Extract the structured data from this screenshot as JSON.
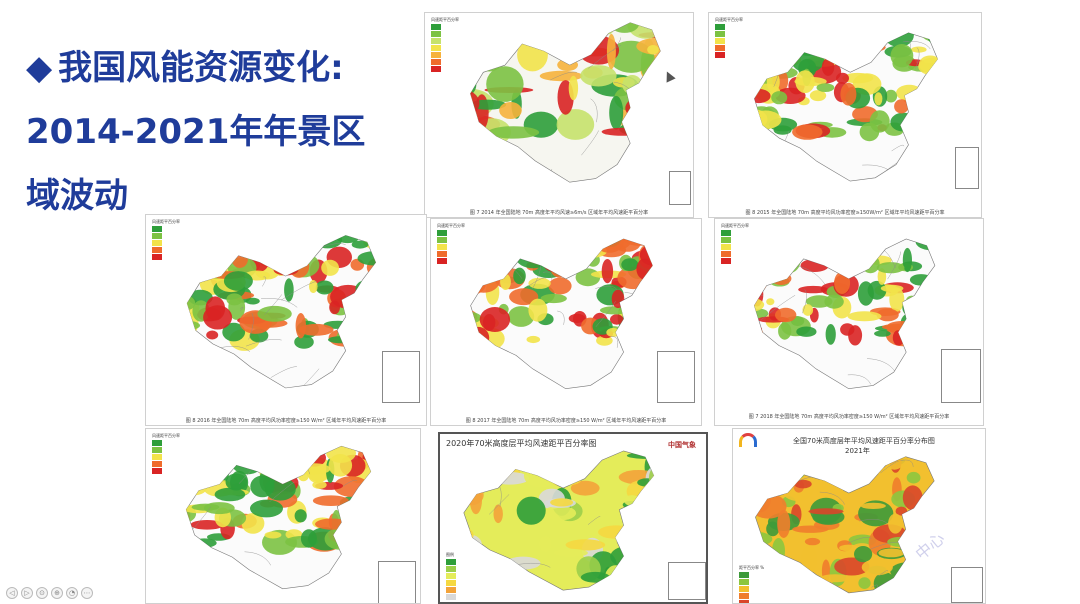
{
  "slide": {
    "title_lines": [
      "我国风能资源变化:",
      "2014-2021年年景区",
      "域波动"
    ],
    "bullet": "◆",
    "title_color": "#1f3c9a"
  },
  "maps": [
    {
      "id": "map-2014",
      "caption": "图 7   2014 年全国陆地 70m 高度年平均风速≥6m/s 区域年平均风速距平百分率",
      "legend_title": "风速距平百分率",
      "palette": [
        "#2e9e3a",
        "#7cc242",
        "#c6e26b",
        "#f2e34a",
        "#f6b23c",
        "#ef6b2c",
        "#d92424"
      ]
    },
    {
      "id": "map-2015",
      "caption": "图 8   2015 年全国陆地 70m 高度平均风功率密度≥150W/m² 区域年平均风速距平百分率",
      "legend_title": "风速距平百分率",
      "palette": [
        "#2e9e3a",
        "#7cc242",
        "#f2e34a",
        "#ef6b2c",
        "#d92424"
      ]
    },
    {
      "id": "map-2016",
      "caption": "图 8   2016 年全国陆地 70m 高度平均风功率密度≥150 W/m² 区域年平均风速距平百分率",
      "legend_title": "风速距平百分率",
      "palette": [
        "#2e9e3a",
        "#7cc242",
        "#f2e34a",
        "#ef6b2c",
        "#d92424"
      ]
    },
    {
      "id": "map-2017",
      "caption": "图 8   2017 年全国陆地 70m 高度平均风功率密度≥150 W/m² 区域年平均风速距平百分率",
      "legend_title": "风速距平百分率",
      "palette": [
        "#2e9e3a",
        "#7cc242",
        "#f2e34a",
        "#ef6b2c",
        "#d92424"
      ]
    },
    {
      "id": "map-2018",
      "caption": "图 7   2018 年全国陆地 70m 高度平均风功率密度≥150 W/m² 区域年平均风速距平百分率",
      "legend_title": "风速距平百分率",
      "palette": [
        "#2e9e3a",
        "#7cc242",
        "#f2e34a",
        "#ef6b2c",
        "#d92424"
      ]
    },
    {
      "id": "map-2019",
      "caption": "",
      "legend_title": "风速距平百分率",
      "palette": [
        "#2e9e3a",
        "#7cc242",
        "#f2e34a",
        "#ef6b2c",
        "#d92424"
      ]
    },
    {
      "id": "map-2020",
      "title": "2020年70米高度层平均风速距平百分率图",
      "logo": "中国气象",
      "legend_title": "图例",
      "palette": [
        "#2e9e3a",
        "#9ccf4a",
        "#e4ec5a",
        "#f5d840",
        "#f3a33a",
        "#d9d9d9"
      ]
    },
    {
      "id": "map-2021",
      "title": "全国70米高度层年平均风速距平百分率分布图",
      "subtitle": "2021年",
      "legend_title": "距平百分率 %",
      "watermark": "中心",
      "palette": [
        "#3d9a3a",
        "#8cc63f",
        "#f2c02f",
        "#ef7d2c",
        "#d9462a"
      ]
    }
  ],
  "nav_buttons": [
    "◁",
    "▷",
    "⊙",
    "⊕",
    "◔",
    "⋯"
  ]
}
